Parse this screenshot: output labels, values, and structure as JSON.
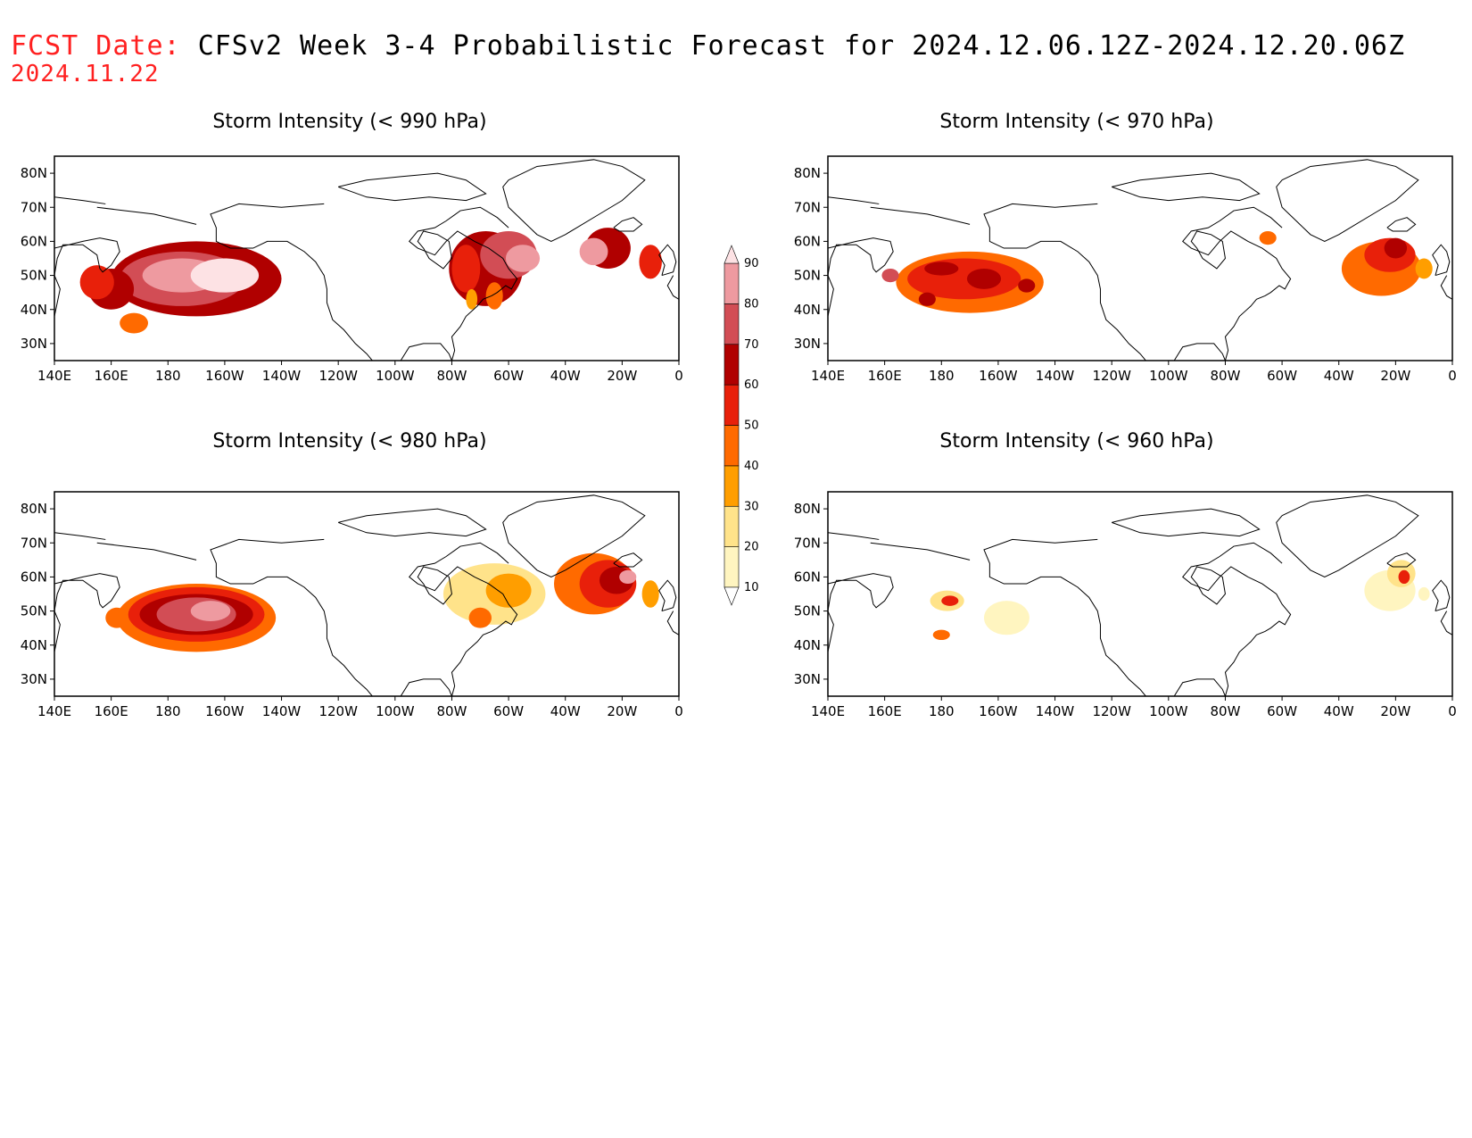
{
  "header": {
    "label": "FCST Date:",
    "title": "CFSv2 Week 3-4 Probabilistic Forecast for 2024.12.06.12Z-2024.12.20.06Z",
    "fcst_date": "2024.11.22"
  },
  "panels": [
    {
      "title": "Storm Intensity (< 990 hPa)"
    },
    {
      "title": "Storm Intensity (< 970 hPa)"
    },
    {
      "title": "Storm Intensity (< 980 hPa)"
    },
    {
      "title": "Storm Intensity (< 960 hPa)"
    }
  ],
  "axes": {
    "lon_labels": [
      "140E",
      "160E",
      "180",
      "160W",
      "140W",
      "120W",
      "100W",
      "80W",
      "60W",
      "40W",
      "20W",
      "0"
    ],
    "lat_labels": [
      "80N",
      "70N",
      "60N",
      "50N",
      "40N",
      "30N"
    ]
  },
  "colorbar": {
    "levels": [
      "10",
      "20",
      "30",
      "40",
      "50",
      "60",
      "70",
      "80",
      "90"
    ],
    "colors": [
      "#fff5c0",
      "#ffe38a",
      "#ff9e00",
      "#ff6a00",
      "#e8200a",
      "#b00000",
      "#d24d55",
      "#ee9aa0",
      "#fde2e4"
    ]
  }
}
